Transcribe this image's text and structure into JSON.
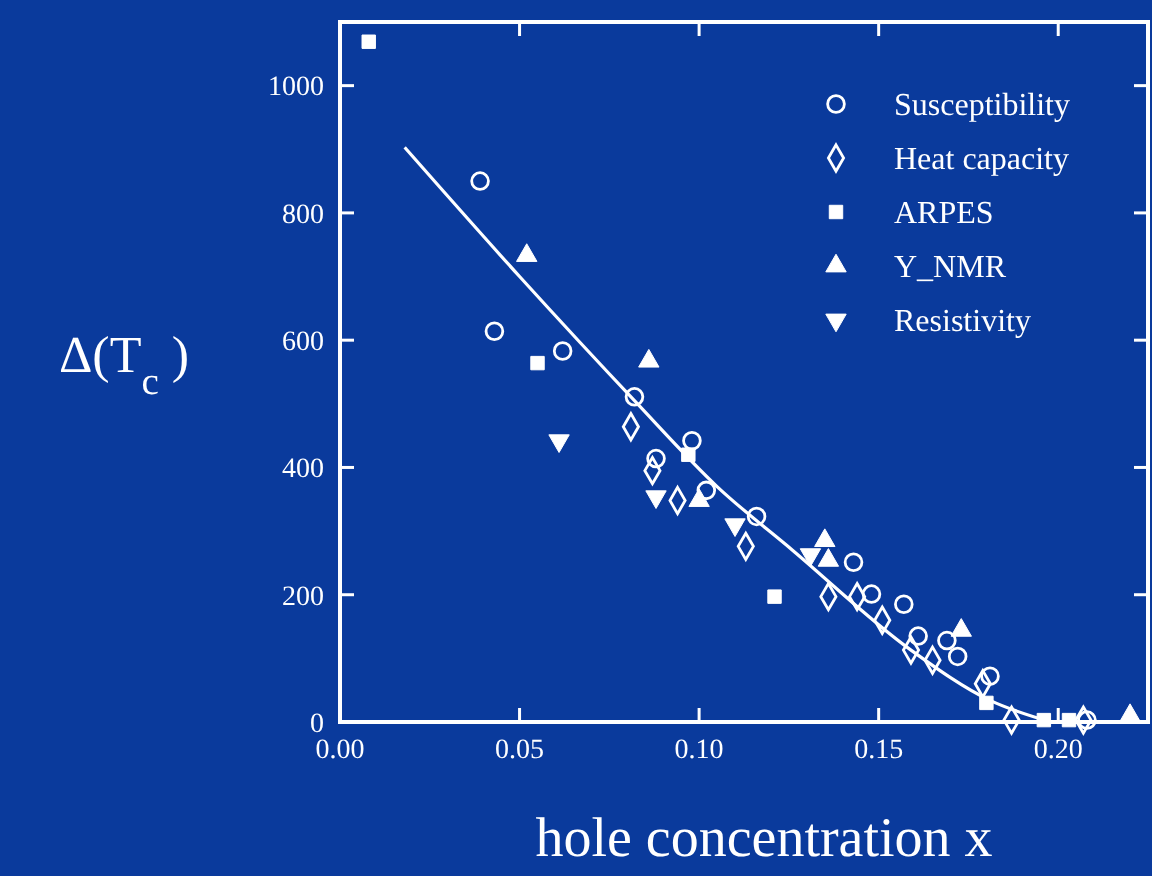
{
  "chart_data": {
    "type": "scatter",
    "xlabel": "hole concentration x",
    "ylabel": "Δ(T$_{c}$ )",
    "xlim": [
      0,
      0.225
    ],
    "ylim": [
      0,
      1100
    ],
    "xticks": [
      {
        "value": 0,
        "label": "0.00"
      },
      {
        "value": 0.05,
        "label": "0.05"
      },
      {
        "value": 0.1,
        "label": "0.10"
      },
      {
        "value": 0.15,
        "label": "0.15"
      },
      {
        "value": 0.2,
        "label": "0.20"
      }
    ],
    "yticks": [
      0,
      200,
      400,
      600,
      800,
      1000
    ],
    "grid": false,
    "legend": "top right",
    "series": [
      {
        "name": "Susceptibility",
        "marker": "circle",
        "color": "#ffffff",
        "x": [
          0.039,
          0.043,
          0.062,
          0.082,
          0.088,
          0.098,
          0.102,
          0.116,
          0.143,
          0.148,
          0.157,
          0.161,
          0.169,
          0.172,
          0.181,
          0.208
        ],
        "values": [
          850,
          614,
          583,
          511,
          414,
          442,
          364,
          323,
          251,
          201,
          185,
          135,
          128,
          103,
          72,
          3
        ]
      },
      {
        "name": "Heat capacity",
        "marker": "diamond",
        "color": "#ffffff",
        "x": [
          0.081,
          0.087,
          0.094,
          0.113,
          0.136,
          0.144,
          0.151,
          0.159,
          0.165,
          0.179,
          0.187,
          0.207
        ],
        "values": [
          464,
          395,
          348,
          276,
          197,
          197,
          160,
          113,
          97,
          60,
          3,
          3
        ]
      },
      {
        "name": "ARPES",
        "marker": "square",
        "color": "#ffffff",
        "x": [
          0.008,
          0.055,
          0.097,
          0.121,
          0.18,
          0.196,
          0.203
        ],
        "values": [
          1069,
          564,
          420,
          197,
          30,
          3,
          3
        ]
      },
      {
        "name": "Y_NMR",
        "marker": "triangle",
        "color": "#ffffff",
        "x": [
          0.052,
          0.086,
          0.1,
          0.135,
          0.136,
          0.173,
          0.22
        ],
        "values": [
          733,
          567,
          348,
          285,
          254,
          144,
          10
        ]
      },
      {
        "name": "Resistivity",
        "marker": "triangle-down",
        "color": "#ffffff",
        "x": [
          0.061,
          0.088,
          0.11,
          0.131
        ],
        "values": [
          442,
          354,
          310,
          263
        ]
      },
      {
        "type": "line",
        "marker": "none",
        "color": "#ffffff",
        "x": [
          0.018,
          0.05,
          0.082,
          0.105,
          0.126,
          0.159,
          0.181,
          0.198
        ],
        "values": [
          903,
          700,
          505,
          370,
          270,
          113,
          34,
          0
        ]
      }
    ]
  }
}
